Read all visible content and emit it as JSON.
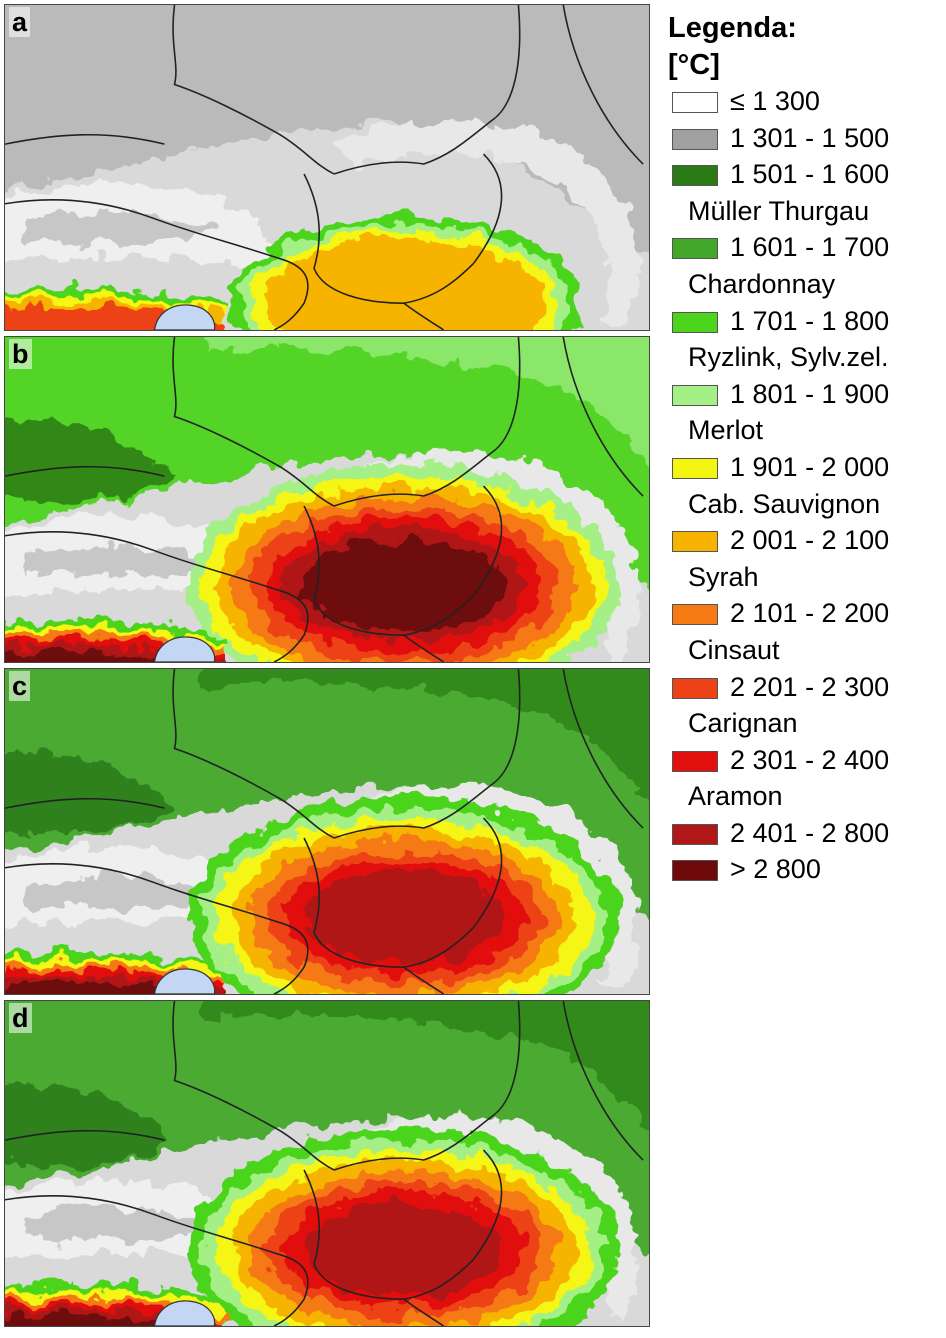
{
  "legend": {
    "title": "Legenda:",
    "unit": "[°C]",
    "items": [
      {
        "range": "≤ 1 300",
        "color": "#ffffff"
      },
      {
        "range": "1 301 - 1 500",
        "color": "#a0a0a0"
      },
      {
        "range": "1 501 - 1 600",
        "color": "#2a7a16",
        "variety": "Müller Thurgau"
      },
      {
        "range": "1 601 - 1 700",
        "color": "#43a82a",
        "variety": "Chardonnay"
      },
      {
        "range": "1 701 - 1 800",
        "color": "#4cd41c",
        "variety": "Ryzlink, Sylv.zel."
      },
      {
        "range": "1 801 - 1 900",
        "color": "#a4ef86",
        "variety": "Merlot"
      },
      {
        "range": "1 901 - 2 000",
        "color": "#f5f512",
        "variety": "Cab. Sauvignon"
      },
      {
        "range": "2 001 - 2 100",
        "color": "#f6b400",
        "variety": "Syrah"
      },
      {
        "range": "2 101 - 2 200",
        "color": "#f57a14",
        "variety": "Cinsaut"
      },
      {
        "range": "2 201 - 2 300",
        "color": "#ec4216",
        "variety": "Carignan"
      },
      {
        "range": "2 301 - 2 400",
        "color": "#e2100e",
        "variety": "Aramon"
      },
      {
        "range": "2 401 - 2 800",
        "color": "#b01818"
      },
      {
        "range": "> 2 800",
        "color": "#6e0a0a"
      }
    ]
  },
  "panels": [
    {
      "label": "a",
      "warmth": 0
    },
    {
      "label": "b",
      "warmth": 3
    },
    {
      "label": "c",
      "warmth": 2
    },
    {
      "label": "d",
      "warmth": 2
    }
  ],
  "map": {
    "sea_color": "#c3d7f5",
    "relief_color": "#d9d9d9",
    "border_color": "#222222"
  }
}
